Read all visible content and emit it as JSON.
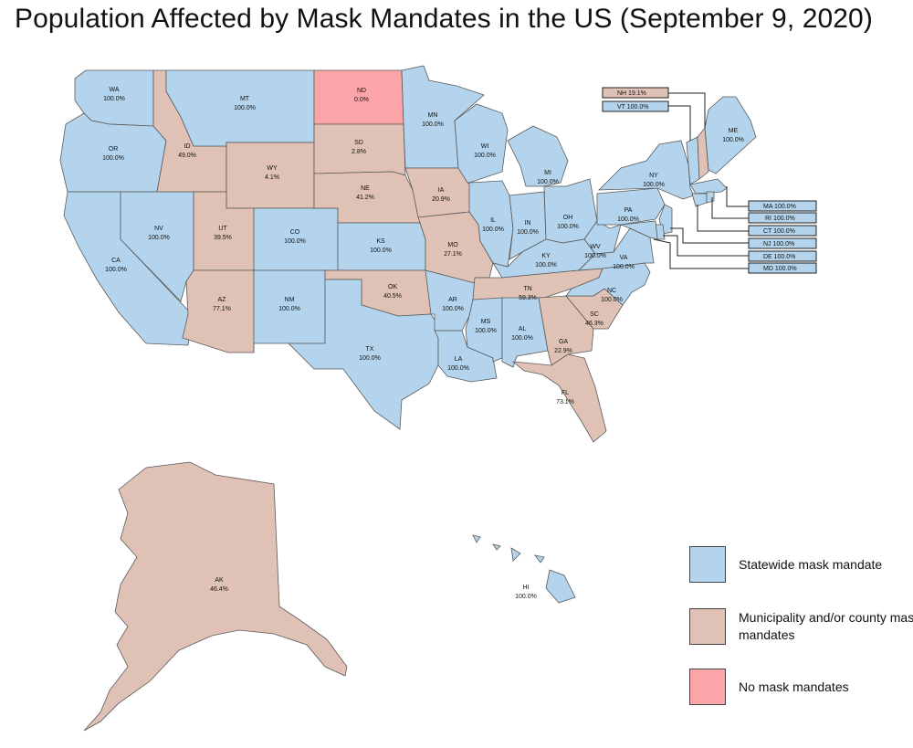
{
  "title": "Population Affected by Mask Mandates in the US (September 9, 2020)",
  "colors": {
    "statewide": "#b3d4ec",
    "municipal": "#dfc2b5",
    "none": "#fba5a8"
  },
  "legend": [
    {
      "key": "statewide",
      "label": "Statewide mask mandate"
    },
    {
      "key": "municipal",
      "label": "Municipality and/or county mask mandates"
    },
    {
      "key": "none",
      "label": "No mask mandates"
    }
  ],
  "states": [
    {
      "abbr": "WA",
      "value": "100.0%",
      "category": "statewide"
    },
    {
      "abbr": "OR",
      "value": "100.0%",
      "category": "statewide"
    },
    {
      "abbr": "CA",
      "value": "100.0%",
      "category": "statewide"
    },
    {
      "abbr": "NV",
      "value": "100.0%",
      "category": "statewide"
    },
    {
      "abbr": "ID",
      "value": "49.0%",
      "category": "municipal"
    },
    {
      "abbr": "MT",
      "value": "100.0%",
      "category": "statewide"
    },
    {
      "abbr": "WY",
      "value": "4.1%",
      "category": "municipal"
    },
    {
      "abbr": "UT",
      "value": "39.5%",
      "category": "municipal"
    },
    {
      "abbr": "AZ",
      "value": "77.1%",
      "category": "municipal"
    },
    {
      "abbr": "CO",
      "value": "100.0%",
      "category": "statewide"
    },
    {
      "abbr": "NM",
      "value": "100.0%",
      "category": "statewide"
    },
    {
      "abbr": "ND",
      "value": "0.0%",
      "category": "none"
    },
    {
      "abbr": "SD",
      "value": "2.8%",
      "category": "municipal"
    },
    {
      "abbr": "NE",
      "value": "41.2%",
      "category": "municipal"
    },
    {
      "abbr": "KS",
      "value": "100.0%",
      "category": "statewide"
    },
    {
      "abbr": "OK",
      "value": "40.5%",
      "category": "municipal"
    },
    {
      "abbr": "TX",
      "value": "100.0%",
      "category": "statewide"
    },
    {
      "abbr": "MN",
      "value": "100.0%",
      "category": "statewide"
    },
    {
      "abbr": "IA",
      "value": "20.9%",
      "category": "municipal"
    },
    {
      "abbr": "MO",
      "value": "27.1%",
      "category": "municipal"
    },
    {
      "abbr": "AR",
      "value": "100.0%",
      "category": "statewide"
    },
    {
      "abbr": "LA",
      "value": "100.0%",
      "category": "statewide"
    },
    {
      "abbr": "WI",
      "value": "100.0%",
      "category": "statewide"
    },
    {
      "abbr": "IL",
      "value": "100.0%",
      "category": "statewide"
    },
    {
      "abbr": "MI",
      "value": "100.0%",
      "category": "statewide"
    },
    {
      "abbr": "IN",
      "value": "100.0%",
      "category": "statewide"
    },
    {
      "abbr": "OH",
      "value": "100.0%",
      "category": "statewide"
    },
    {
      "abbr": "KY",
      "value": "100.0%",
      "category": "statewide"
    },
    {
      "abbr": "TN",
      "value": "59.3%",
      "category": "municipal"
    },
    {
      "abbr": "MS",
      "value": "100.0%",
      "category": "statewide"
    },
    {
      "abbr": "AL",
      "value": "100.0%",
      "category": "statewide"
    },
    {
      "abbr": "GA",
      "value": "22.9%",
      "category": "municipal"
    },
    {
      "abbr": "FL",
      "value": "73.1%",
      "category": "municipal"
    },
    {
      "abbr": "SC",
      "value": "46.3%",
      "category": "municipal"
    },
    {
      "abbr": "NC",
      "value": "100.0%",
      "category": "statewide"
    },
    {
      "abbr": "VA",
      "value": "100.0%",
      "category": "statewide"
    },
    {
      "abbr": "WV",
      "value": "100.0%",
      "category": "statewide"
    },
    {
      "abbr": "PA",
      "value": "100.0%",
      "category": "statewide"
    },
    {
      "abbr": "NY",
      "value": "100.0%",
      "category": "statewide"
    },
    {
      "abbr": "ME",
      "value": "100.0%",
      "category": "statewide"
    },
    {
      "abbr": "AK",
      "value": "46.4%",
      "category": "municipal"
    },
    {
      "abbr": "HI",
      "value": "100.0%",
      "category": "statewide"
    }
  ],
  "small_states": [
    {
      "abbr": "NH",
      "value": "19.1%",
      "category": "municipal"
    },
    {
      "abbr": "VT",
      "value": "100.0%",
      "category": "statewide"
    },
    {
      "abbr": "MA",
      "value": "100.0%",
      "category": "statewide"
    },
    {
      "abbr": "RI",
      "value": "100.0%",
      "category": "statewide"
    },
    {
      "abbr": "CT",
      "value": "100.0%",
      "category": "statewide"
    },
    {
      "abbr": "NJ",
      "value": "100.0%",
      "category": "statewide"
    },
    {
      "abbr": "DE",
      "value": "100.0%",
      "category": "statewide"
    },
    {
      "abbr": "MD",
      "value": "100.0%",
      "category": "statewide"
    }
  ]
}
